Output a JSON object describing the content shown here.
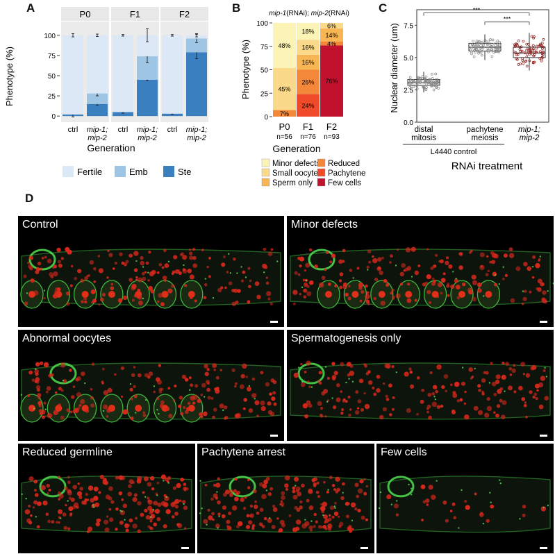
{
  "panels": {
    "A": {
      "label": "A",
      "facets": [
        "P0",
        "F1",
        "F2"
      ],
      "group_labels": [
        [
          "ctrl"
        ],
        [
          "mip-1;",
          "mip-2"
        ]
      ],
      "ylabel": "Phenotype (%)",
      "xlabel": "Generation",
      "yticks": [
        "0",
        "25",
        "50",
        "75",
        "100"
      ],
      "legend": [
        "Fertile",
        "Emb",
        "Ste"
      ],
      "colors": {
        "Fertile": "#dce8f5",
        "Emb": "#9ec5e4",
        "Ste": "#3a7fc0",
        "facet_strip": "#e8e8e8"
      }
    },
    "B": {
      "label": "B",
      "title_parts": [
        "mip-1",
        "(RNAi); ",
        "mip-2",
        "(RNAi)"
      ],
      "ylabel": "Phenotype (%)",
      "xlabel": "Generation",
      "yticks": [
        "0",
        "25",
        "50",
        "75",
        "100"
      ],
      "categories": [
        "P0",
        "F1",
        "F2"
      ],
      "n_labels": [
        "n=56",
        "n=76",
        "n=93"
      ],
      "legend": [
        "Minor defects",
        "Small oocytes",
        "Sperm only",
        "Reduced",
        "Pachytene",
        "Few cells"
      ]
    },
    "C": {
      "label": "C",
      "ylabel": "Nuclear diameter (um)",
      "xlabel": "RNAi treatment",
      "yticks": [
        "0.0",
        "2.5",
        "5.0",
        "7.5"
      ],
      "group_labels": [
        [
          "distal",
          "mitosis"
        ],
        [
          "pachytene",
          "meiosis"
        ],
        [
          "mip-1;",
          "mip-2"
        ]
      ],
      "control_label": "L4440 control",
      "sig": [
        "***",
        "***"
      ]
    },
    "D": {
      "label": "D",
      "images": [
        "Control",
        "Minor defects",
        "Abnormal oocytes",
        "Spermatogenesis only",
        "Reduced germline",
        "Pachytene arrest",
        "Few cells"
      ]
    }
  },
  "chart_data": [
    {
      "type": "bar",
      "panel": "A",
      "stacked": true,
      "facets": [
        "P0",
        "F1",
        "F2"
      ],
      "categories": [
        "ctrl",
        "mip-1; mip-2"
      ],
      "ylabel": "Phenotype (%)",
      "xlabel": "Generation",
      "ylim": [
        0,
        100
      ],
      "series": [
        {
          "name": "Ste",
          "values": [
            [
              2,
              15
            ],
            [
              5,
              45
            ],
            [
              3,
              79
            ]
          ],
          "errors": [
            [
              3,
              1.5
            ],
            [
              1.5,
              1.5
            ],
            [
              1,
              8
            ]
          ]
        },
        {
          "name": "Emb",
          "values": [
            [
              0,
              13
            ],
            [
              0,
              29
            ],
            [
              0,
              17
            ]
          ],
          "errors": [
            [
              0,
              3
            ],
            [
              0,
              8
            ],
            [
              0,
              5
            ]
          ]
        },
        {
          "name": "Fertile",
          "values": [
            [
              98,
              72
            ],
            [
              95,
              26
            ],
            [
              97,
              4
            ]
          ],
          "errors": [
            [
              2,
              1.5
            ],
            [
              1,
              8
            ],
            [
              1,
              2
            ]
          ]
        }
      ]
    },
    {
      "type": "bar",
      "panel": "B",
      "stacked": true,
      "categories": [
        "P0",
        "F1",
        "F2"
      ],
      "ylabel": "Phenotype (%)",
      "xlabel": "Generation",
      "ylim": [
        0,
        100
      ],
      "series": [
        {
          "name": "Few cells",
          "color": "#c0122f",
          "values": [
            0,
            0,
            76
          ],
          "labels": [
            "",
            "",
            "76%"
          ]
        },
        {
          "name": "Pachytene",
          "color": "#ef4a2a",
          "values": [
            0,
            24,
            0
          ],
          "labels": [
            "",
            "24%",
            ""
          ]
        },
        {
          "name": "Reduced",
          "color": "#f4883a",
          "values": [
            7,
            26,
            4
          ],
          "labels": [
            "7%",
            "26%",
            "4%"
          ]
        },
        {
          "name": "Sperm only",
          "color": "#f7b554",
          "values": [
            0,
            16,
            14
          ],
          "labels": [
            "",
            "16%",
            "14%"
          ]
        },
        {
          "name": "Small oocytes",
          "color": "#fad98b",
          "values": [
            45,
            16,
            6
          ],
          "labels": [
            "45%",
            "16%",
            "6%"
          ]
        },
        {
          "name": "Minor defects",
          "color": "#fcf3b6",
          "values": [
            48,
            18,
            0
          ],
          "labels": [
            "48%",
            "18%",
            ""
          ]
        }
      ]
    },
    {
      "type": "scatter",
      "subtype": "boxplot",
      "panel": "C",
      "categories": [
        "distal mitosis",
        "pachytene meiosis",
        "mip-1; mip-2"
      ],
      "ylabel": "Nuclear diameter (um)",
      "xlabel": "RNAi treatment",
      "ylim": [
        0,
        8.7
      ],
      "boxes": [
        {
          "q1": 2.85,
          "median": 3.05,
          "q3": 3.3,
          "whisker_low": 2.3,
          "whisker_high": 3.9,
          "point_color": "#888888"
        },
        {
          "q1": 5.5,
          "median": 5.8,
          "q3": 6.1,
          "whisker_low": 4.8,
          "whisker_high": 6.8,
          "point_color": "#888888"
        },
        {
          "q1": 5.0,
          "median": 5.35,
          "q3": 5.8,
          "whisker_low": 4.0,
          "whisker_high": 6.9,
          "point_color": "#8b1a1a"
        }
      ],
      "comparisons": [
        {
          "from": "distal mitosis",
          "to": "mip-1; mip-2",
          "label": "***"
        },
        {
          "from": "pachytene meiosis",
          "to": "mip-1; mip-2",
          "label": "***"
        }
      ]
    }
  ]
}
